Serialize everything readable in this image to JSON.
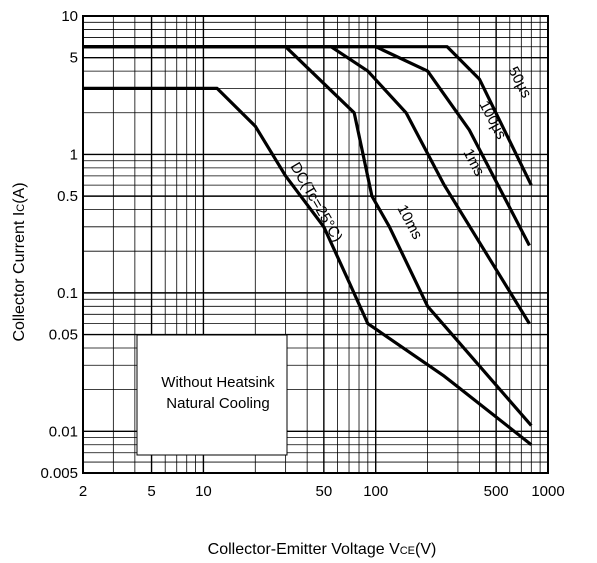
{
  "chart_data": {
    "type": "line",
    "x_scale": "log",
    "y_scale": "log",
    "xlim": [
      2,
      1000
    ],
    "ylim": [
      0.005,
      10
    ],
    "grid": true,
    "xlabel": "Collector-Emitter Voltage V",
    "xlabel_sub": "CE",
    "xlabel_unit": "(V)",
    "ylabel": "Collector Current I",
    "ylabel_sub": "C",
    "ylabel_unit": "(A)",
    "x_ticks": [
      {
        "value": 2,
        "label": "2"
      },
      {
        "value": 5,
        "label": "5"
      },
      {
        "value": 10,
        "label": "10"
      },
      {
        "value": 50,
        "label": "50"
      },
      {
        "value": 100,
        "label": "100"
      },
      {
        "value": 500,
        "label": "500"
      },
      {
        "value": 1000,
        "label": "1000"
      }
    ],
    "y_ticks": [
      {
        "value": 10,
        "label": "10"
      },
      {
        "value": 5,
        "label": "5"
      },
      {
        "value": 1,
        "label": "1"
      },
      {
        "value": 0.5,
        "label": "0.5"
      },
      {
        "value": 0.1,
        "label": "0.1"
      },
      {
        "value": 0.05,
        "label": "0.05"
      },
      {
        "value": 0.01,
        "label": "0.01"
      },
      {
        "value": 0.005,
        "label": "0.005"
      }
    ],
    "series": [
      {
        "name": "DC(Tc=25°C)",
        "points": [
          [
            2,
            3
          ],
          [
            12,
            3
          ],
          [
            20,
            1.6
          ],
          [
            30,
            0.7
          ],
          [
            50,
            0.3
          ],
          [
            70,
            0.12
          ],
          [
            90,
            0.06
          ],
          [
            250,
            0.025
          ],
          [
            800,
            0.008
          ]
        ]
      },
      {
        "name": "10ms",
        "points": [
          [
            2,
            6
          ],
          [
            30,
            6
          ],
          [
            75,
            2
          ],
          [
            95,
            0.5
          ],
          [
            120,
            0.3
          ],
          [
            200,
            0.08
          ],
          [
            800,
            0.011
          ]
        ]
      },
      {
        "name": "1ms",
        "points": [
          [
            2,
            6
          ],
          [
            55,
            6
          ],
          [
            90,
            4
          ],
          [
            150,
            2
          ],
          [
            250,
            0.6
          ],
          [
            780,
            0.06
          ]
        ]
      },
      {
        "name": "100µs",
        "points": [
          [
            2,
            6
          ],
          [
            100,
            6
          ],
          [
            200,
            4
          ],
          [
            350,
            1.5
          ],
          [
            780,
            0.22
          ]
        ]
      },
      {
        "name": "50µs",
        "points": [
          [
            2,
            6
          ],
          [
            260,
            6
          ],
          [
            400,
            3.5
          ],
          [
            800,
            0.6
          ]
        ]
      }
    ],
    "annotation": {
      "lines": [
        "Without Heatsink",
        "Natural Cooling"
      ]
    }
  }
}
